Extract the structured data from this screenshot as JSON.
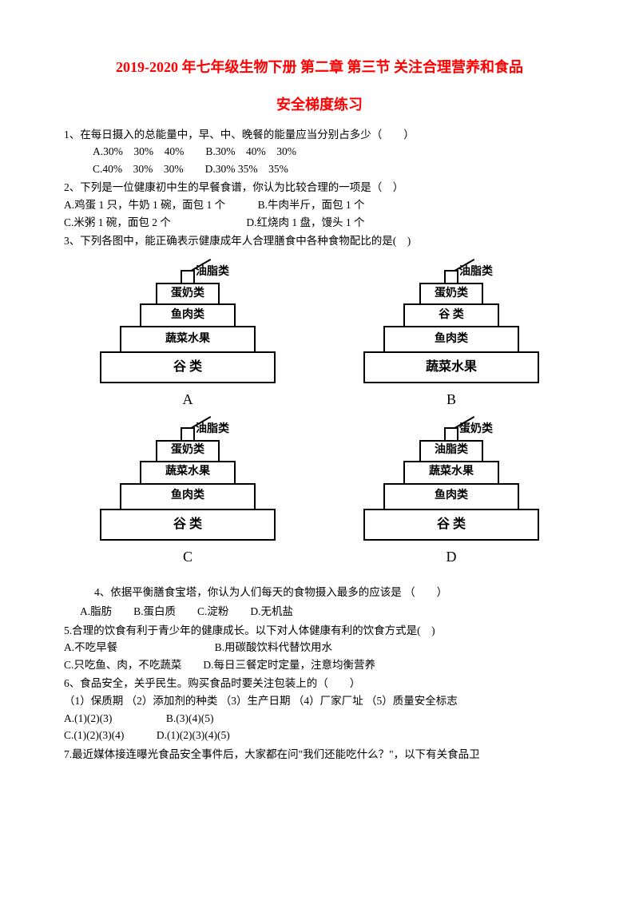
{
  "title": {
    "line1": "2019-2020 年七年级生物下册 第二章 第三节 关注合理营养和食品",
    "line2": "安全梯度练习"
  },
  "q1": {
    "text": "1、在每日摄入的总能量中，早、中、晚餐的能量应当分别占多少（　　）",
    "optA": "A.30%　30%　40%",
    "optB": "B.30%　40%　30%",
    "optC": "C.40%　30%　30%",
    "optD": "D.30% 35%　35%"
  },
  "q2": {
    "text": "2、下列是一位健康初中生的早餐食谱，你认为比较合理的一项是（　）",
    "optA": "A.鸡蛋 1 只，牛奶 1 碗，面包 1 个",
    "optB": "B.牛肉半斤，面包 1 个",
    "optC": "C.米粥 1 碗，面包 2 个",
    "optD": "D.红烧肉 1 盘，馒头 1 个"
  },
  "q3": {
    "text": "3、下列各图中，能正确表示健康成年人合理膳食中各种食物配比的是(　)"
  },
  "pyramids": {
    "A": {
      "topLabel": "油脂类",
      "level1": "蛋奶类",
      "level2": "鱼肉类",
      "level3": "蔬菜水果",
      "level4": "谷 类",
      "label": "A"
    },
    "B": {
      "topLabel": "油脂类",
      "level1": "蛋奶类",
      "level2": "谷 类",
      "level3": "鱼肉类",
      "level4": "蔬菜水果",
      "label": "B"
    },
    "C": {
      "topLabel": "油脂类",
      "level1": "蛋奶类",
      "level2": "蔬菜水果",
      "level3": "鱼肉类",
      "level4": "谷 类",
      "label": "C"
    },
    "D": {
      "topLabel": "蛋奶类",
      "level1": "油脂类",
      "level2": "蔬菜水果",
      "level3": "鱼肉类",
      "level4": "谷 类",
      "label": "D"
    }
  },
  "q4": {
    "text": "4、依据平衡膳食宝塔，你认为人们每天的食物摄入最多的应该是 （　　）",
    "optA": "A.脂肪",
    "optB": "B.蛋白质",
    "optC": "C.淀粉",
    "optD": "D.无机盐"
  },
  "q5": {
    "text": "5.合理的饮食有利于青少年的健康成长。以下对人体健康有利的饮食方式是(　)",
    "optA": "A.不吃早餐",
    "optB": "B.用碳酸饮料代替饮用水",
    "optC": "C.只吃鱼、肉，不吃蔬菜",
    "optD": "D.每日三餐定时定量，注意均衡营养"
  },
  "q6": {
    "text": "6、食品安全，关乎民生。购买食品时要关注包装上的（　　）",
    "sub": "（1）保质期 （2）添加剂的种类 （3）生产日期 （4）厂家厂址 （5）质量安全标志",
    "optA": "A.(1)(2)(3)",
    "optB": "B.(3)(4)(5)",
    "optC": "C.(1)(2)(3)(4)",
    "optD": "D.(1)(2)(3)(4)(5)"
  },
  "q7": {
    "text": "7.最近媒体接连曝光食品安全事件后，大家都在问\"我们还能吃什么？\"，以下有关食品卫"
  }
}
